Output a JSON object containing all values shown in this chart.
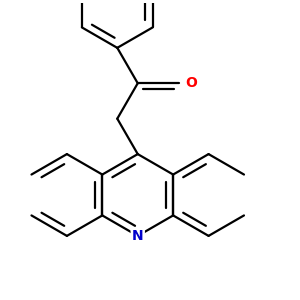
{
  "bg_color": "#ffffff",
  "bond_color": "#000000",
  "N_color": "#0000cc",
  "O_color": "#ff0000",
  "bond_lw": 1.6,
  "font_size_N": 10,
  "font_size_O": 10,
  "figsize": [
    3.0,
    3.0
  ],
  "dpi": 100,
  "xlim": [
    -3.2,
    3.8
  ],
  "ylim": [
    -3.0,
    4.2
  ],
  "bl": 1.0
}
